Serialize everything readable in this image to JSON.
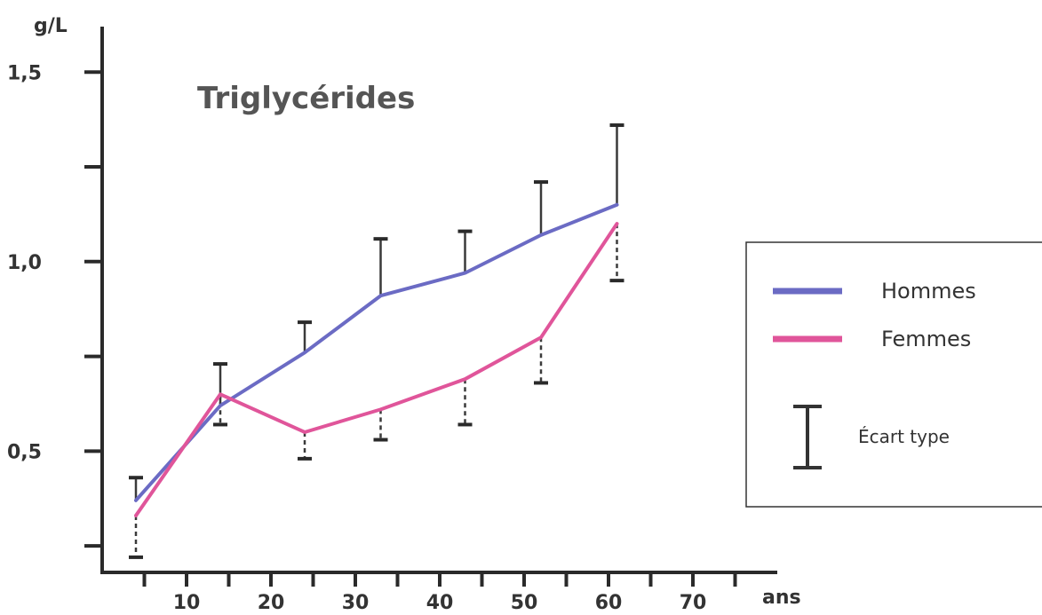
{
  "chart_data": {
    "type": "line",
    "title": "Triglycérides",
    "ylabel": "g/L",
    "xlabel": "ans",
    "ylim": [
      0.18,
      1.62
    ],
    "xlim": [
      0,
      80
    ],
    "y_ticks": [
      0.25,
      0.5,
      0.75,
      1.0,
      1.25,
      1.5
    ],
    "y_tick_labels": [
      {
        "value": 0.5,
        "label": "0,5"
      },
      {
        "value": 1.0,
        "label": "1,0"
      },
      {
        "value": 1.5,
        "label": "1,5"
      }
    ],
    "x_ticks": [
      5,
      10,
      15,
      20,
      25,
      30,
      35,
      40,
      45,
      50,
      55,
      60,
      65,
      70,
      75
    ],
    "x_tick_labels": [
      {
        "value": 10,
        "label": "10"
      },
      {
        "value": 20,
        "label": "20"
      },
      {
        "value": 30,
        "label": "30"
      },
      {
        "value": 40,
        "label": "40"
      },
      {
        "value": 50,
        "label": "50"
      },
      {
        "value": 60,
        "label": "60"
      },
      {
        "value": 70,
        "label": "70"
      }
    ],
    "grid": false,
    "legend_position": "right",
    "series": [
      {
        "name": "Hommes",
        "color": "#6b6bc4",
        "x": [
          4,
          14,
          24,
          33,
          43,
          52,
          61
        ],
        "y": [
          0.37,
          0.62,
          0.76,
          0.91,
          0.97,
          1.07,
          1.15
        ],
        "error_upper": [
          0.43,
          0.73,
          0.84,
          1.06,
          1.08,
          1.21,
          1.36
        ],
        "error_style": "solid"
      },
      {
        "name": "Femmes",
        "color": "#e0559a",
        "x": [
          4,
          14,
          24,
          33,
          43,
          52,
          61
        ],
        "y": [
          0.33,
          0.65,
          0.55,
          0.61,
          0.69,
          0.8,
          1.1
        ],
        "error_lower": [
          0.22,
          0.57,
          0.48,
          0.53,
          0.57,
          0.68,
          0.95
        ],
        "error_style": "dashed"
      }
    ],
    "legend": {
      "items": [
        {
          "label": "Hommes",
          "color": "#6b6bc4"
        },
        {
          "label": "Femmes",
          "color": "#e0559a"
        }
      ],
      "error_label": "Écart type"
    }
  }
}
